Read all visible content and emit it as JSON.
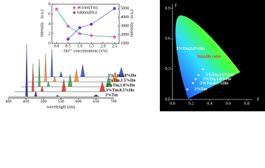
{
  "chart_data": [
    {
      "type": "line",
      "categories": null,
      "x": [
        0.0,
        0.5,
        1.0,
        1.5,
        2.5
      ],
      "xlabel": "Ho³⁺ concentrations (x%)",
      "ylabel": "Intensity",
      "ylabel_unit": "(a.u.)",
      "y2label": "Intensity",
      "y2label_unit": "(a.u.)",
      "xlim": [
        -0.2,
        2.7
      ],
      "xticks": [
        {
          "value": 0,
          "label": "0.0"
        },
        {
          "value": 0.5,
          "label": "0.5"
        },
        {
          "value": 1,
          "label": "1.0"
        },
        {
          "value": 1.5,
          "label": "1.5"
        },
        {
          "value": 2,
          "label": "2.0"
        },
        {
          "value": 2.5,
          "label": "2.5"
        }
      ],
      "ylim": [
        0,
        8
      ],
      "yticks": [
        0,
        2,
        4,
        6,
        8
      ],
      "y2lim": [
        1000,
        5500
      ],
      "y2ticks": [
        1000,
        2000,
        3000,
        4000,
        5000
      ],
      "series": [
        {
          "name": "461nm(Tm)",
          "color": "#e040c0",
          "marker": "star",
          "values": [
            7,
            3.5,
            2.0,
            1.6,
            1.3
          ]
        },
        {
          "name": "640nm(Ho)",
          "color": "#6a3fc8",
          "marker": "circle",
          "axis": "y2",
          "values": [
            null,
            1500,
            2800,
            3200,
            5000
          ]
        }
      ]
    }
  ],
  "spectra": {
    "xlabel": "wavelength (nm)",
    "xticks": [
      400,
      450,
      500,
      550,
      600,
      650,
      700
    ],
    "series": [
      "3%Tm,3.0%Ho",
      "3%Tm,1.5%Ho",
      "3%Tm,1.0%Ho",
      "3%Tm,0.5%Ho",
      "3%Tm"
    ]
  },
  "cie": {
    "xlabel": "X",
    "ylabel": "Y",
    "annotation": "Tunable color",
    "xticks": [
      {
        "value": 0,
        "label": "0.0"
      },
      {
        "value": 0.2,
        "label": "0.2"
      },
      {
        "value": 0.4,
        "label": "0.4"
      },
      {
        "value": 0.6,
        "label": "0.6"
      },
      {
        "value": 0.8,
        "label": "0.8"
      }
    ],
    "yticks": [
      {
        "value": 0,
        "label": "0.0"
      },
      {
        "value": 0.3,
        "label": "0.3"
      },
      {
        "value": 0.6,
        "label": "0.6"
      },
      {
        "value": 0.9,
        "label": "0.9"
      }
    ],
    "points": [
      {
        "label": "3%Tm,3.0%Ho",
        "x": 0.33,
        "y": 0.3
      },
      {
        "label": "3%Tm,1.5%Ho",
        "x": 0.28,
        "y": 0.24
      },
      {
        "label": "3%Tm,1.0%Ho",
        "x": 0.25,
        "y": 0.2
      },
      {
        "label": "3%Tm,0.5%Ho",
        "x": 0.22,
        "y": 0.16
      },
      {
        "label": "3%Tm",
        "x": 0.16,
        "y": 0.1
      }
    ]
  }
}
